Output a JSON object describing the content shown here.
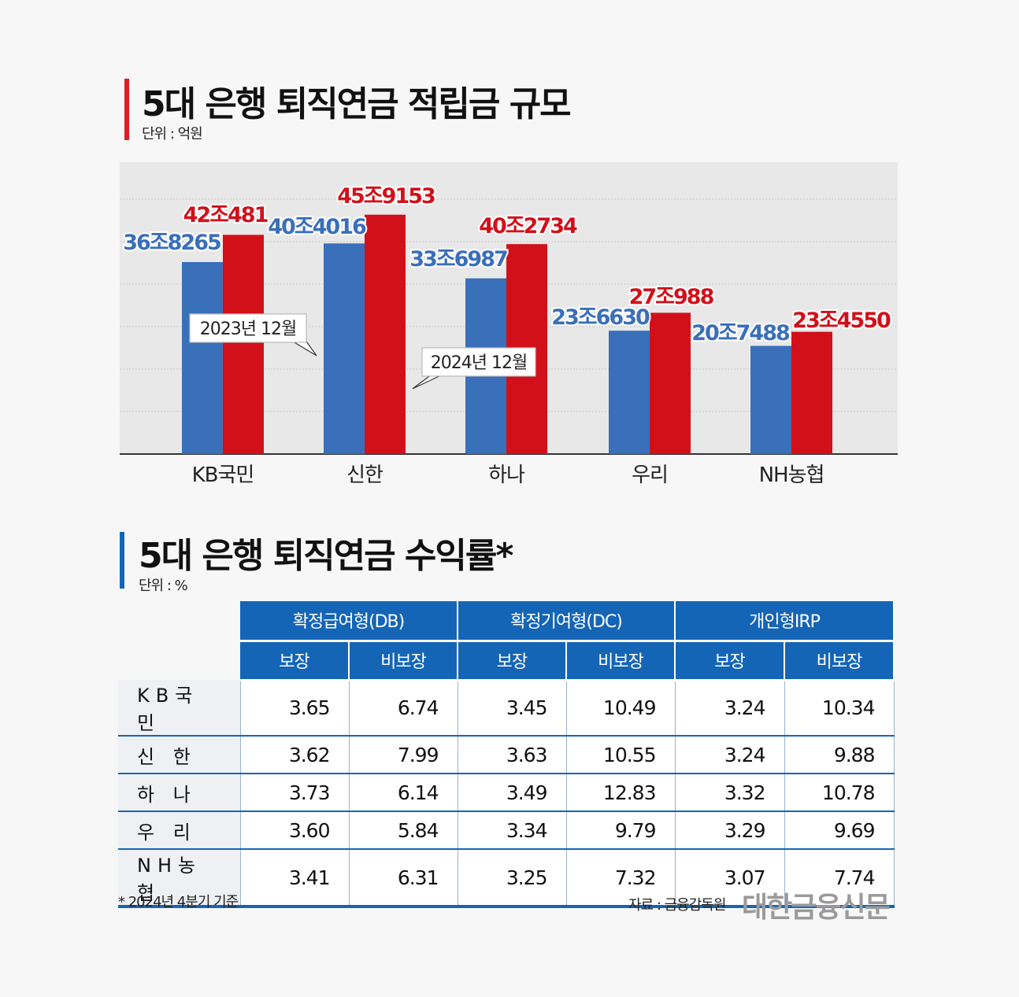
{
  "top": {
    "title": "5대 은행 퇴직연금 적립금 규모",
    "unit": "단위 : 억원",
    "accent_color": "#e01b22"
  },
  "bottom": {
    "title": "5대 은행 퇴직연금 수익률*",
    "unit": "단위 : %",
    "accent_color": "#1565b7"
  },
  "chart_data": [
    {
      "type": "bar",
      "title": "5대 은행 퇴직연금 적립금 규모",
      "unit": "단위 : 억원",
      "categories": [
        "KB국민",
        "신한",
        "하나",
        "우리",
        "NH농협"
      ],
      "series": [
        {
          "name": "2023년 12월",
          "color": "#3a6fba",
          "values": [
            368265,
            404016,
            336987,
            236630,
            207488
          ],
          "labels": [
            "36조8265",
            "40조4016",
            "33조6987",
            "23조6630",
            "20조7488"
          ]
        },
        {
          "name": "2024년 12월",
          "color": "#d2101a",
          "values": [
            420481,
            459153,
            402734,
            270988,
            234550
          ],
          "labels": [
            "42조481",
            "45조9153",
            "40조2734",
            "27조988",
            "23조4550"
          ]
        }
      ],
      "ylim": [
        0,
        560000
      ],
      "grid": true
    },
    {
      "type": "table",
      "title": "5대 은행 퇴직연금 수익률*",
      "unit": "단위 : %",
      "groups": [
        "확정급여형(DB)",
        "확정기여형(DC)",
        "개인형IRP"
      ],
      "subheaders": [
        "보장",
        "비보장",
        "보장",
        "비보장",
        "보장",
        "비보장"
      ],
      "rows": [
        {
          "bank": "KB국민",
          "values": [
            "3.65",
            "6.74",
            "3.45",
            "10.49",
            "3.24",
            "10.34"
          ]
        },
        {
          "bank": "신 한",
          "values": [
            "3.62",
            "7.99",
            "3.63",
            "10.55",
            "3.24",
            "9.88"
          ]
        },
        {
          "bank": "하 나",
          "values": [
            "3.73",
            "6.14",
            "3.49",
            "12.83",
            "3.32",
            "10.78"
          ]
        },
        {
          "bank": "우 리",
          "values": [
            "3.60",
            "5.84",
            "3.34",
            "9.79",
            "3.29",
            "9.69"
          ]
        },
        {
          "bank": "NH농협",
          "values": [
            "3.41",
            "6.31",
            "3.25",
            "7.32",
            "3.07",
            "7.74"
          ]
        }
      ]
    }
  ],
  "footnote": "* 2024년 4분기 기준",
  "source": "자료 : 금융감독원",
  "brand": "대한금융신문"
}
